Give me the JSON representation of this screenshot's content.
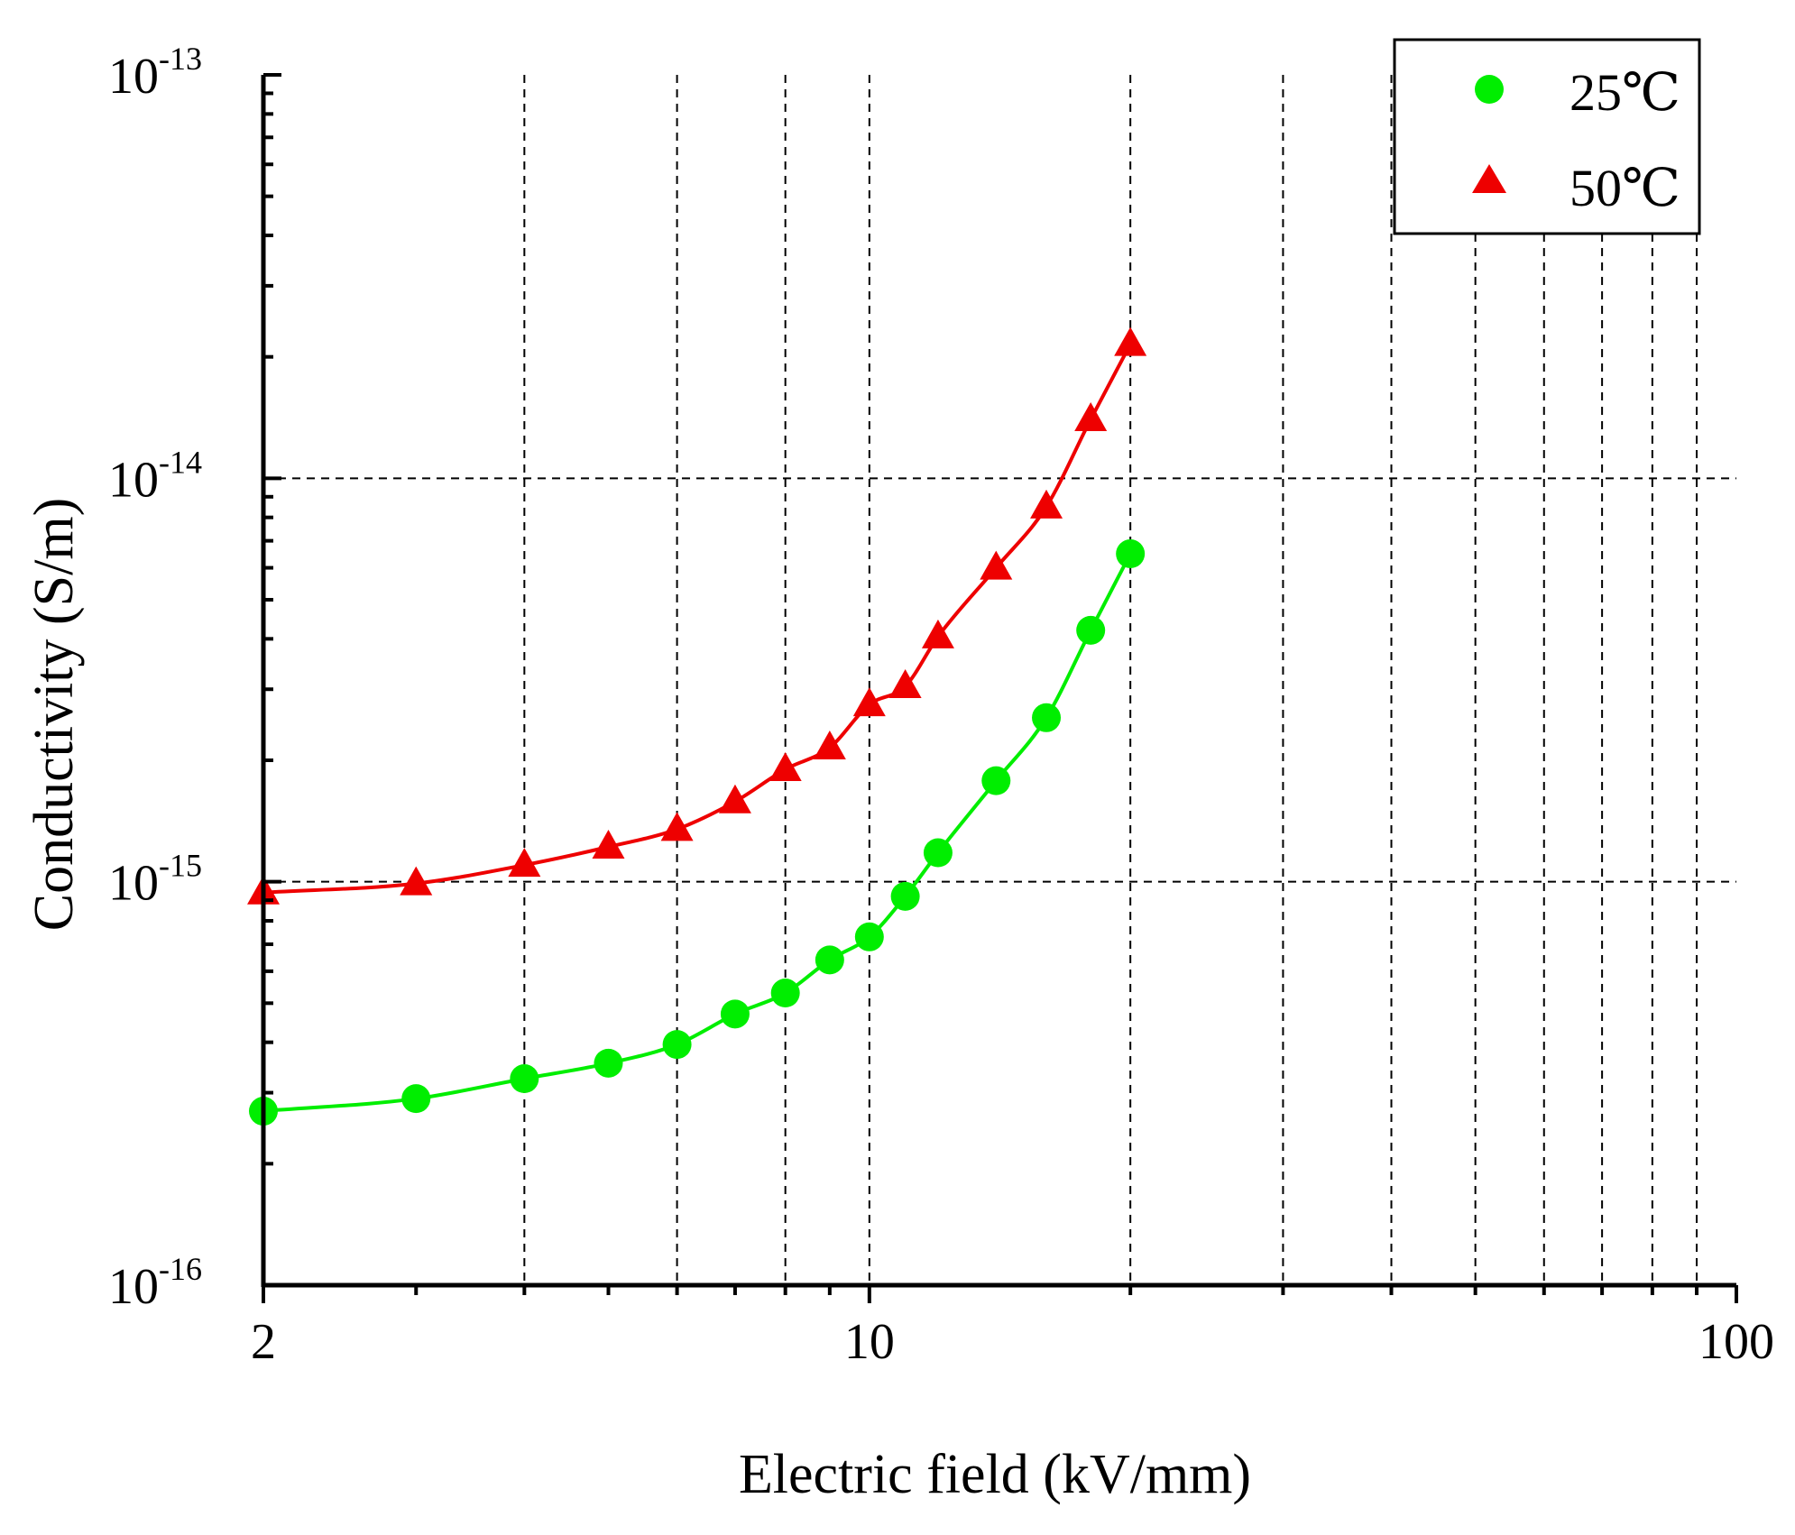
{
  "chart_data": {
    "type": "line",
    "title": "",
    "xlabel": "Electric field (kV/mm)",
    "ylabel": "Conductivity (S/m)",
    "xscale": "log",
    "yscale": "log",
    "xlim": [
      2,
      100
    ],
    "ylim": [
      1e-16,
      1e-13
    ],
    "x_major_ticks": [
      2,
      10,
      100
    ],
    "x_tick_labels": [
      "2",
      "10",
      "100"
    ],
    "y_major_ticks": [
      {
        "value": 1e-16,
        "base": "10",
        "exp": "-16"
      },
      {
        "value": 1e-15,
        "base": "10",
        "exp": "-15"
      },
      {
        "value": 1e-14,
        "base": "10",
        "exp": "-14"
      },
      {
        "value": 1e-13,
        "base": "10",
        "exp": "-13"
      }
    ],
    "x_gridlines": [
      4,
      6,
      8,
      10,
      20,
      30,
      40,
      50,
      60,
      70,
      80,
      90
    ],
    "y_gridlines": [
      1e-15,
      1e-14
    ],
    "legend_position": "top-right",
    "series": [
      {
        "name": "25℃",
        "color": "#00ee00",
        "marker": "circle",
        "x": [
          2,
          3,
          4,
          5,
          6,
          7,
          8,
          9,
          10,
          11,
          12,
          14,
          16,
          18,
          20
        ],
        "y": [
          2.7e-16,
          2.9e-16,
          3.25e-16,
          3.55e-16,
          3.95e-16,
          4.7e-16,
          5.3e-16,
          6.4e-16,
          7.3e-16,
          9.2e-16,
          1.18e-15,
          1.78e-15,
          2.55e-15,
          4.2e-15,
          6.5e-15
        ]
      },
      {
        "name": "50℃",
        "color": "#ee0000",
        "marker": "triangle",
        "x": [
          2,
          3,
          4,
          5,
          6,
          7,
          8,
          9,
          10,
          11,
          12,
          14,
          16,
          18,
          20
        ],
        "y": [
          9.4e-16,
          9.9e-16,
          1.1e-15,
          1.22e-15,
          1.35e-15,
          1.58e-15,
          1.9e-15,
          2.15e-15,
          2.75e-15,
          3.05e-15,
          4.05e-15,
          6e-15,
          8.5e-15,
          1.4e-14,
          2.15e-14
        ]
      }
    ]
  }
}
